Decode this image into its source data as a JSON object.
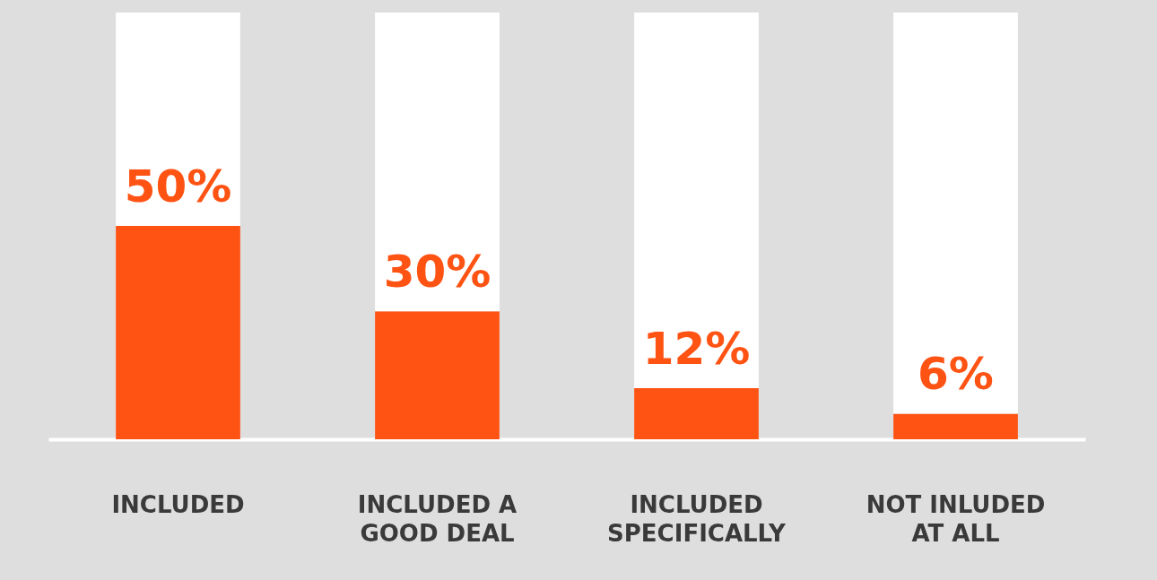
{
  "chart_data": {
    "type": "bar",
    "stacked": true,
    "categories": [
      "INCLUDED",
      "INCLUDED A GOOD DEAL",
      "INCLUDED SPECIFICALLY",
      "NOT INLUDED AT ALL"
    ],
    "ylim": [
      0,
      100
    ],
    "tick_labels": "x",
    "series": [
      {
        "color": "#ff5314",
        "values": [
          50,
          30,
          12,
          6
        ],
        "value_labels": [
          "50%",
          "30%",
          "12%",
          "6%"
        ]
      },
      {
        "color": "#ffffff",
        "values": [
          50,
          70,
          88,
          94
        ]
      }
    ]
  }
}
